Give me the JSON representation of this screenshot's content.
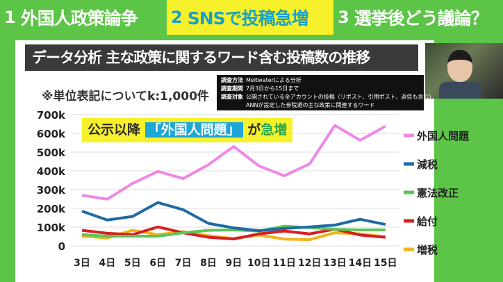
{
  "topbar": {
    "items": [
      {
        "num": "1",
        "label": "外国人政策論争"
      },
      {
        "num": "2",
        "label": "SNSで投稿急増"
      },
      {
        "num": "3",
        "label": "選挙後どう議論？"
      }
    ]
  },
  "title": "データ分析 主な政策に関するワード含む投稿数の推移",
  "unit_note": "※単位表記についてk:1,000件",
  "method": {
    "rows": [
      {
        "k": "調査方法",
        "v": "Meltwaterによる分析"
      },
      {
        "k": "調査期間",
        "v": "7月3日から15日まで"
      },
      {
        "k": "調査対象",
        "v": "公開されている全アカウントの投稿（リポスト、引用ポスト、返信も含む）"
      },
      {
        "k": "",
        "v": "ANNが設定した参院選の主な政策に関連するワード"
      }
    ]
  },
  "callout": {
    "pre": "公示以降",
    "highlight": "「外国人問題」",
    "mid": "が",
    "accent": "急増"
  },
  "chart_data": {
    "type": "line",
    "categories": [
      "3日",
      "4日",
      "5日",
      "6日",
      "7日",
      "8日",
      "9日",
      "10日",
      "11日",
      "12日",
      "13日",
      "14日",
      "15日"
    ],
    "ylim": [
      0,
      700000
    ],
    "yticks": [
      {
        "v": 0,
        "label": "0"
      },
      {
        "v": 100000,
        "label": "100k"
      },
      {
        "v": 200000,
        "label": "200k"
      },
      {
        "v": 300000,
        "label": "300k"
      },
      {
        "v": 400000,
        "label": "400k"
      },
      {
        "v": 500000,
        "label": "500k"
      },
      {
        "v": 600000,
        "label": "600k"
      },
      {
        "v": 700000,
        "label": "700k"
      }
    ],
    "grid": true,
    "legend": "right",
    "series": [
      {
        "name": "外国人問題",
        "color": "#ee88e6",
        "values": [
          270000,
          249000,
          333000,
          397000,
          359000,
          433000,
          530000,
          426000,
          374000,
          437000,
          642000,
          563000,
          638000
        ]
      },
      {
        "name": "減税",
        "color": "#1f6aa5",
        "values": [
          185000,
          138000,
          157000,
          231000,
          193000,
          120000,
          96000,
          81000,
          93000,
          101000,
          111000,
          142000,
          114000
        ]
      },
      {
        "name": "憲法改正",
        "color": "#5dc45a",
        "values": [
          60000,
          52000,
          52000,
          52000,
          70000,
          83000,
          85000,
          79000,
          105000,
          97000,
          89000,
          85000,
          85000
        ]
      },
      {
        "name": "給付",
        "color": "#d81f1f",
        "values": [
          83000,
          67000,
          60000,
          101000,
          70000,
          46000,
          37000,
          64000,
          79000,
          64000,
          89000,
          58000,
          46000
        ]
      },
      {
        "name": "増税",
        "color": "#f2b41c",
        "values": [
          52000,
          42000,
          83000,
          60000,
          76000,
          54000,
          39000,
          58000,
          36000,
          33000,
          70000,
          64000,
          48000
        ]
      }
    ]
  }
}
